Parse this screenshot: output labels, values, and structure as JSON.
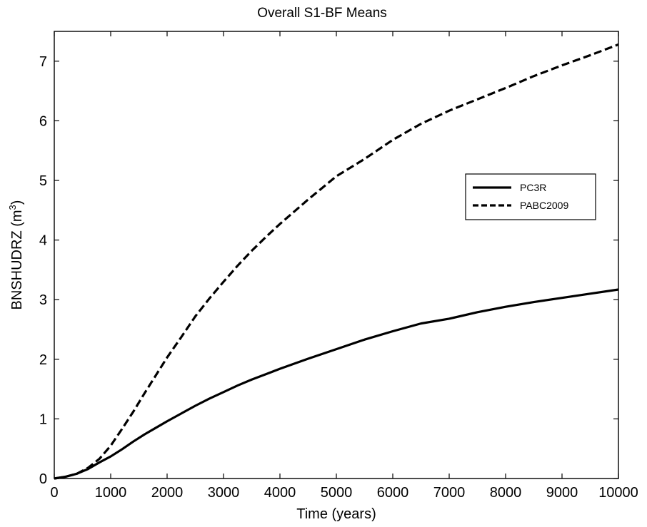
{
  "chart_data": {
    "type": "line",
    "title": "Overall S1-BF Means",
    "xlabel": "Time (years)",
    "ylabel_main": "BNSHUDRZ (m",
    "ylabel_sup": "3",
    "ylabel_close": ")",
    "xlim": [
      0,
      10000
    ],
    "ylim": [
      0,
      7.5
    ],
    "xticks": [
      0,
      1000,
      2000,
      3000,
      4000,
      5000,
      6000,
      7000,
      8000,
      9000,
      10000
    ],
    "yticks": [
      0,
      1,
      2,
      3,
      4,
      5,
      6,
      7
    ],
    "grid": false,
    "legend_position": "right",
    "series": [
      {
        "name": "PC3R",
        "style": "solid",
        "color": "#000000",
        "x": [
          0,
          200,
          400,
          600,
          800,
          1000,
          1200,
          1400,
          1600,
          1800,
          2000,
          2250,
          2500,
          2750,
          3000,
          3250,
          3500,
          3750,
          4000,
          4500,
          5000,
          5500,
          6000,
          6500,
          7000,
          7500,
          8000,
          8500,
          9000,
          9500,
          10000
        ],
        "y": [
          0,
          0.03,
          0.08,
          0.16,
          0.27,
          0.37,
          0.49,
          0.62,
          0.74,
          0.85,
          0.96,
          1.09,
          1.22,
          1.34,
          1.45,
          1.56,
          1.66,
          1.75,
          1.84,
          2.01,
          2.17,
          2.33,
          2.47,
          2.6,
          2.68,
          2.79,
          2.88,
          2.96,
          3.03,
          3.1,
          3.17
        ]
      },
      {
        "name": "PABC2009",
        "style": "dashed",
        "color": "#000000",
        "x": [
          0,
          200,
          400,
          600,
          800,
          1000,
          1200,
          1400,
          1600,
          1800,
          2000,
          2250,
          2500,
          2750,
          3000,
          3250,
          3500,
          3750,
          4000,
          4500,
          5000,
          5500,
          6000,
          6500,
          7000,
          7500,
          8000,
          8500,
          9000,
          9500,
          10000
        ],
        "y": [
          0,
          0.03,
          0.08,
          0.18,
          0.33,
          0.55,
          0.83,
          1.12,
          1.43,
          1.73,
          2.03,
          2.37,
          2.72,
          3.02,
          3.3,
          3.57,
          3.82,
          4.05,
          4.27,
          4.68,
          5.07,
          5.36,
          5.68,
          5.95,
          6.17,
          6.36,
          6.55,
          6.75,
          6.93,
          7.1,
          7.28
        ]
      }
    ]
  }
}
